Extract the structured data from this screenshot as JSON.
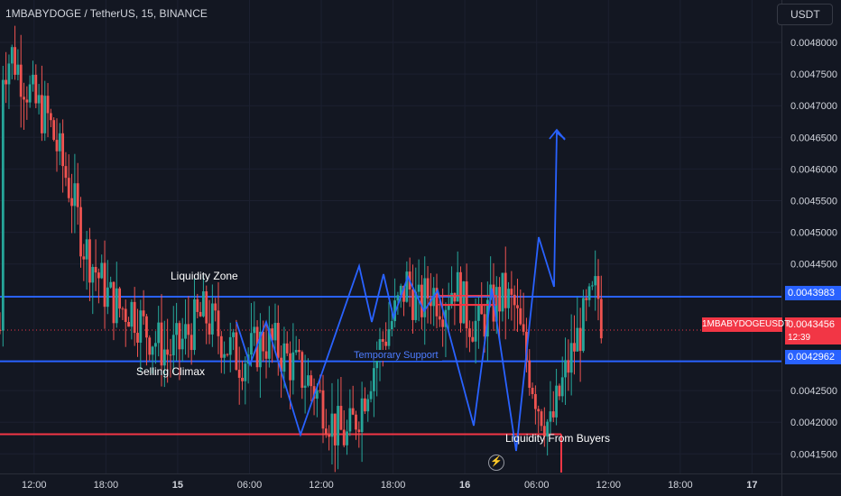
{
  "header": {
    "symbol_title": "1MBABYDOGE / TetherUS, 15, BINANCE"
  },
  "currency_button": {
    "label": "USDT"
  },
  "price_axis": {
    "ticks": [
      "0.0048000",
      "0.0047500",
      "0.0047000",
      "0.0046500",
      "0.0046000",
      "0.0045500",
      "0.0045000",
      "0.0044500",
      "0.0042500",
      "0.0042000",
      "0.0041500"
    ],
    "tags": {
      "upper_level": "0.0043983",
      "lower_level": "0.0042962",
      "last_price": "0.0043456",
      "symbol_label": "1MBABYDOGEUSDT",
      "countdown": "12:39"
    }
  },
  "time_axis": {
    "ticks": [
      "12:00",
      "18:00",
      "15",
      "06:00",
      "12:00",
      "18:00",
      "16",
      "06:00",
      "12:00",
      "18:00",
      "17"
    ]
  },
  "annotations": {
    "liquidity_zone": "Liquidity Zone",
    "selling_climax": "Selling Climax",
    "temporary_support": "Temporary Support",
    "liquidity_from_buyers": "Liquidity From Buyers"
  },
  "colors": {
    "background": "#131722",
    "up": "#26a69a",
    "down": "#ef5350",
    "drawing_blue": "#2962ff",
    "drawing_red": "#f23645"
  },
  "chart_data": {
    "type": "candlestick",
    "y_range": [
      0.00413,
      0.00484
    ],
    "x_range_hours_from_14_09_00": [
      0,
      69.9
    ],
    "horizontal_levels": [
      {
        "price": 0.0043983,
        "color": "blue"
      },
      {
        "price": 0.0042962,
        "color": "blue"
      },
      {
        "price": 0.004181,
        "color": "red"
      }
    ],
    "projection_path_hours_price": [
      [
        31.7,
        0.004436
      ],
      [
        34.6,
        0.004185
      ],
      [
        36.6,
        0.004144
      ],
      [
        39.6,
        0.004496
      ],
      [
        40.5,
        0.004402
      ],
      [
        41.1,
        0.004655
      ],
      [
        41.7,
        0.004638
      ]
    ],
    "zigzag_path_hours_price": [
      [
        27.1,
        0.004446
      ],
      [
        29.0,
        0.004175
      ],
      [
        29.6,
        0.004155
      ],
      [
        31.5,
        0.00414
      ]
    ],
    "close_price_path_hours_price": [
      [
        0.2,
        0.00476
      ],
      [
        1.0,
        0.00478
      ],
      [
        2.0,
        0.00474
      ],
      [
        3.0,
        0.0047
      ],
      [
        4.0,
        0.00468
      ],
      [
        5.0,
        0.00462
      ],
      [
        6.0,
        0.00456
      ],
      [
        7.0,
        0.00448
      ],
      [
        8.0,
        0.00444
      ],
      [
        9.0,
        0.0044
      ],
      [
        10.0,
        0.00438
      ],
      [
        11.0,
        0.00438
      ],
      [
        12.0,
        0.00435
      ],
      [
        13.0,
        0.00433
      ],
      [
        14.0,
        0.00431
      ],
      [
        15.0,
        0.00432
      ],
      [
        16.0,
        0.00435
      ],
      [
        17.0,
        0.00437
      ],
      [
        18.0,
        0.00435
      ],
      [
        19.0,
        0.00432
      ],
      [
        20.0,
        0.0043
      ],
      [
        21.0,
        0.00431
      ],
      [
        22.0,
        0.00433
      ],
      [
        23.0,
        0.00432
      ],
      [
        24.0,
        0.0043
      ],
      [
        25.0,
        0.00428
      ],
      [
        26.0,
        0.00426
      ],
      [
        27.0,
        0.00423
      ],
      [
        28.0,
        0.00419
      ],
      [
        29.0,
        0.004175
      ],
      [
        30.0,
        0.00422
      ],
      [
        31.0,
        0.00428
      ],
      [
        32.0,
        0.00433
      ],
      [
        33.0,
        0.00437
      ],
      [
        34.0,
        0.00442
      ],
      [
        35.0,
        0.00438
      ],
      [
        36.0,
        0.00441
      ],
      [
        37.0,
        0.00439
      ],
      [
        38.0,
        0.00442
      ],
      [
        39.0,
        0.00437
      ],
      [
        40.0,
        0.00435
      ],
      [
        41.0,
        0.00438
      ],
      [
        42.0,
        0.0044
      ],
      [
        43.0,
        0.00438
      ],
      [
        44.0,
        0.0043
      ],
      [
        45.0,
        0.00423
      ],
      [
        46.0,
        0.00419
      ],
      [
        47.0,
        0.00426
      ],
      [
        48.0,
        0.00432
      ],
      [
        49.0,
        0.00437
      ],
      [
        49.9,
        0.00441
      ],
      [
        50.4,
        0.0043456
      ]
    ]
  }
}
